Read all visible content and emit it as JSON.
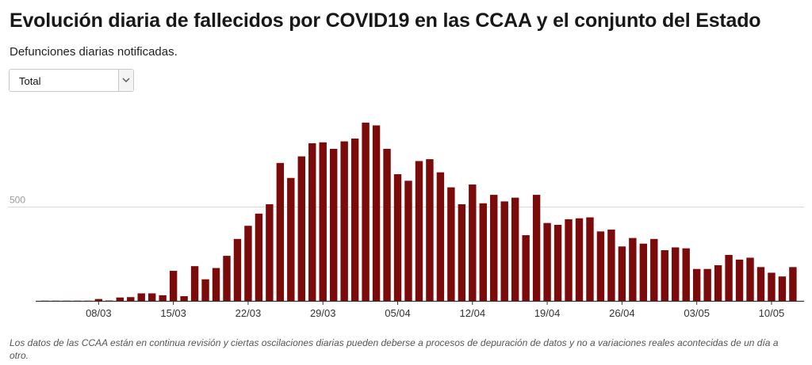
{
  "header": {
    "title": "Evolución diaria de fallecidos por COVID19 en las CCAA y el conjunto del Estado",
    "subtitle": "Defunciones diarias notificadas."
  },
  "selector": {
    "value": "Total",
    "icon": "chevron-down-icon"
  },
  "footnote": "Los datos de las CCAA están en continua revisión y ciertas oscilaciones diarias pueden deberse a procesos de depuración de datos y no a variaciones reales acontecidas de un día a otro.",
  "colors": {
    "bar": "#7b0a0a",
    "grid": "#d9d9d9",
    "axis": "#333333",
    "tick_text": "#333333"
  },
  "chart_data": {
    "type": "bar",
    "title": "Evolución diaria de fallecidos por COVID19 en las CCAA y el conjunto del Estado",
    "xlabel": "",
    "ylabel": "",
    "ylim": [
      0,
      1000
    ],
    "yticks": [
      500
    ],
    "xtick_labels": [
      "08/03",
      "15/03",
      "22/03",
      "29/03",
      "05/04",
      "12/04",
      "19/04",
      "26/04",
      "03/05",
      "10/05"
    ],
    "categories": [
      "03/03",
      "04/03",
      "05/03",
      "06/03",
      "07/03",
      "08/03",
      "09/03",
      "10/03",
      "11/03",
      "12/03",
      "13/03",
      "14/03",
      "15/03",
      "16/03",
      "17/03",
      "18/03",
      "19/03",
      "20/03",
      "21/03",
      "22/03",
      "23/03",
      "24/03",
      "25/03",
      "26/03",
      "27/03",
      "28/03",
      "29/03",
      "30/03",
      "31/03",
      "01/04",
      "02/04",
      "03/04",
      "04/04",
      "05/04",
      "06/04",
      "07/04",
      "08/04",
      "09/04",
      "10/04",
      "11/04",
      "12/04",
      "13/04",
      "14/04",
      "15/04",
      "16/04",
      "17/04",
      "18/04",
      "19/04",
      "20/04",
      "21/04",
      "22/04",
      "23/04",
      "24/04",
      "25/04",
      "26/04",
      "27/04",
      "28/04",
      "29/04",
      "30/04",
      "01/05",
      "02/05",
      "03/05",
      "04/05",
      "05/05",
      "06/05",
      "07/05",
      "08/05",
      "09/05",
      "10/05",
      "11/05",
      "12/05"
    ],
    "values": [
      1,
      1,
      1,
      1,
      1,
      10,
      2,
      18,
      20,
      40,
      40,
      30,
      160,
      25,
      185,
      115,
      175,
      240,
      330,
      400,
      465,
      515,
      735,
      655,
      770,
      840,
      845,
      810,
      850,
      865,
      950,
      935,
      810,
      675,
      640,
      745,
      755,
      685,
      605,
      515,
      620,
      520,
      565,
      530,
      550,
      350,
      565,
      415,
      405,
      435,
      440,
      445,
      370,
      380,
      290,
      335,
      305,
      330,
      270,
      285,
      280,
      170,
      170,
      190,
      245,
      220,
      230,
      180,
      150,
      130,
      180
    ]
  }
}
